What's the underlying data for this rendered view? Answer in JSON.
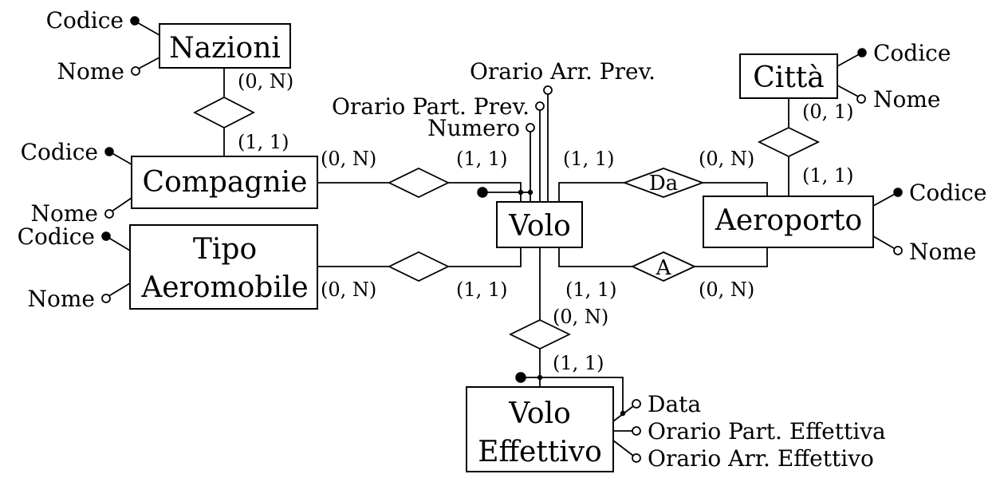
{
  "entities": {
    "nazioni": "Nazioni",
    "citta": "Città",
    "compagnie": "Compagnie",
    "tipo_line1": "Tipo",
    "tipo_line2": "Aeromobile",
    "volo": "Volo",
    "aeroporto": "Aeroporto",
    "voloeff_line1": "Volo",
    "voloeff_line2": "Effettivo"
  },
  "relationships": {
    "da": "Da",
    "a": "A"
  },
  "attributes": {
    "nazioni_codice": "Codice",
    "nazioni_nome": "Nome",
    "citta_codice": "Codice",
    "citta_nome": "Nome",
    "compagnie_codice": "Codice",
    "compagnie_nome": "Nome",
    "tipo_codice": "Codice",
    "tipo_nome": "Nome",
    "aeroporto_codice": "Codice",
    "aeroporto_nome": "Nome",
    "volo_numero": "Numero",
    "volo_orario_part": "Orario Part. Prev.",
    "volo_orario_arr": "Orario Arr. Prev.",
    "voloeff_data": "Data",
    "voloeff_orario_part": "Orario Part. Effettiva",
    "voloeff_orario_arr": "Orario Arr. Effettivo"
  },
  "cardinalities": {
    "nazioni_rel": "(0, N)",
    "compagnie_nazioni": "(1, 1)",
    "compagnie_volo": "(0, N)",
    "volo_compagnie": "(1, 1)",
    "citta_rel": "(0, 1)",
    "aeroporto_citta": "(1, 1)",
    "volo_da": "(1, 1)",
    "aeroporto_da": "(0, N)",
    "tipo_volo": "(0, N)",
    "volo_tipo": "(1, 1)",
    "volo_a": "(1, 1)",
    "aeroporto_a": "(0, N)",
    "volo_voloeff": "(0, N)",
    "voloeff_volo": "(1, 1)"
  }
}
